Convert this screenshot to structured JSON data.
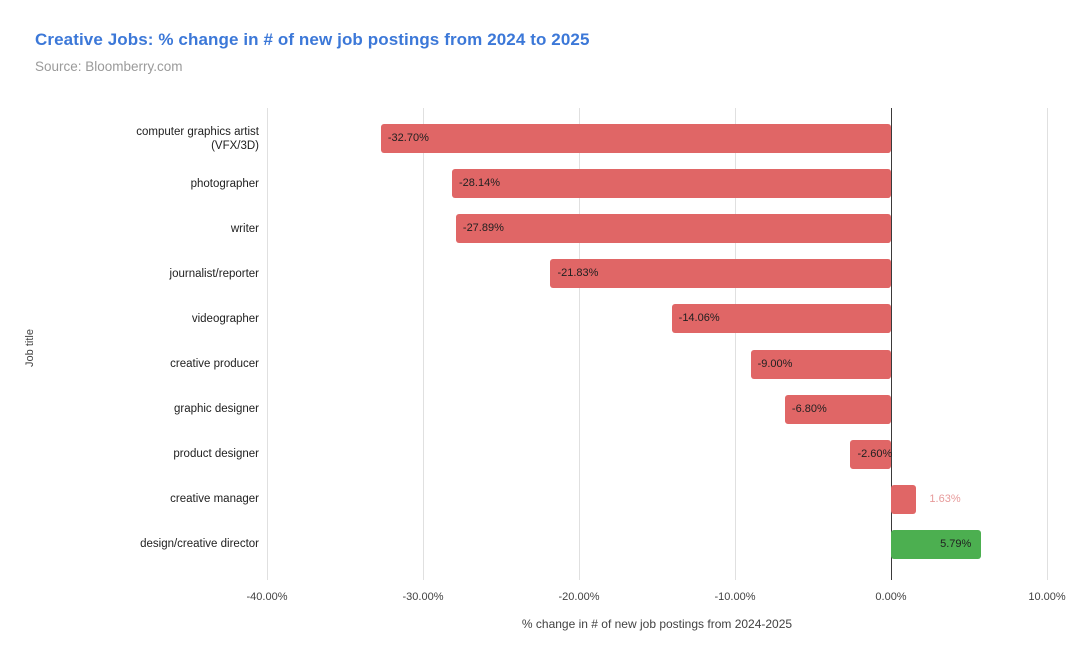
{
  "chart_data": {
    "type": "bar",
    "orientation": "horizontal",
    "title": "Creative Jobs: % change in # of new job postings from 2024 to 2025",
    "subtitle": "Source: Bloomberry.com",
    "xlabel": "% change in # of new job postings from 2024-2025",
    "ylabel": "Job title",
    "xlim": [
      -40,
      10
    ],
    "grid": true,
    "x_ticks": [
      {
        "value": -40,
        "label": "-40.00%"
      },
      {
        "value": -30,
        "label": "-30.00%"
      },
      {
        "value": -20,
        "label": "-20.00%"
      },
      {
        "value": -10,
        "label": "-10.00%"
      },
      {
        "value": 0,
        "label": "0.00%"
      },
      {
        "value": 10,
        "label": "10.00%"
      }
    ],
    "categories": [
      "computer graphics artist (VFX/3D)",
      "photographer",
      "writer",
      "journalist/reporter",
      "videographer",
      "creative producer",
      "graphic designer",
      "product designer",
      "creative manager",
      "design/creative director"
    ],
    "values": [
      -32.7,
      -28.14,
      -27.89,
      -21.83,
      -14.06,
      -9.0,
      -6.8,
      -2.6,
      1.63,
      5.79
    ],
    "value_labels": [
      "-32.70%",
      "-28.14%",
      "-27.89%",
      "-21.83%",
      "-14.06%",
      "-9.00%",
      "-6.80%",
      "-2.60%",
      "1.63%",
      "5.79%"
    ],
    "bar_colors": [
      "#e06666",
      "#e06666",
      "#e06666",
      "#e06666",
      "#e06666",
      "#e06666",
      "#e06666",
      "#e06666",
      "#e06666",
      "#4caf50"
    ],
    "label_placements": [
      "inside-start",
      "inside-start",
      "inside-start",
      "inside-start",
      "inside-start",
      "inside-start",
      "inside-start",
      "inside-start",
      "outside-end",
      "inside-end"
    ],
    "label_colors": [
      "#212121",
      "#212121",
      "#212121",
      "#212121",
      "#212121",
      "#212121",
      "#212121",
      "#212121",
      "#e79a9a",
      "#212121"
    ],
    "legend": "none"
  },
  "colors": {
    "title": "#3c78d8",
    "subtitle": "#9a9a9a",
    "gridline": "#e0e0e0",
    "zero_line": "#3a3a3a",
    "axis_text": "#424242",
    "negative_bar": "#e06666",
    "positive_highlight_bar": "#4caf50",
    "background": "#ffffff"
  }
}
